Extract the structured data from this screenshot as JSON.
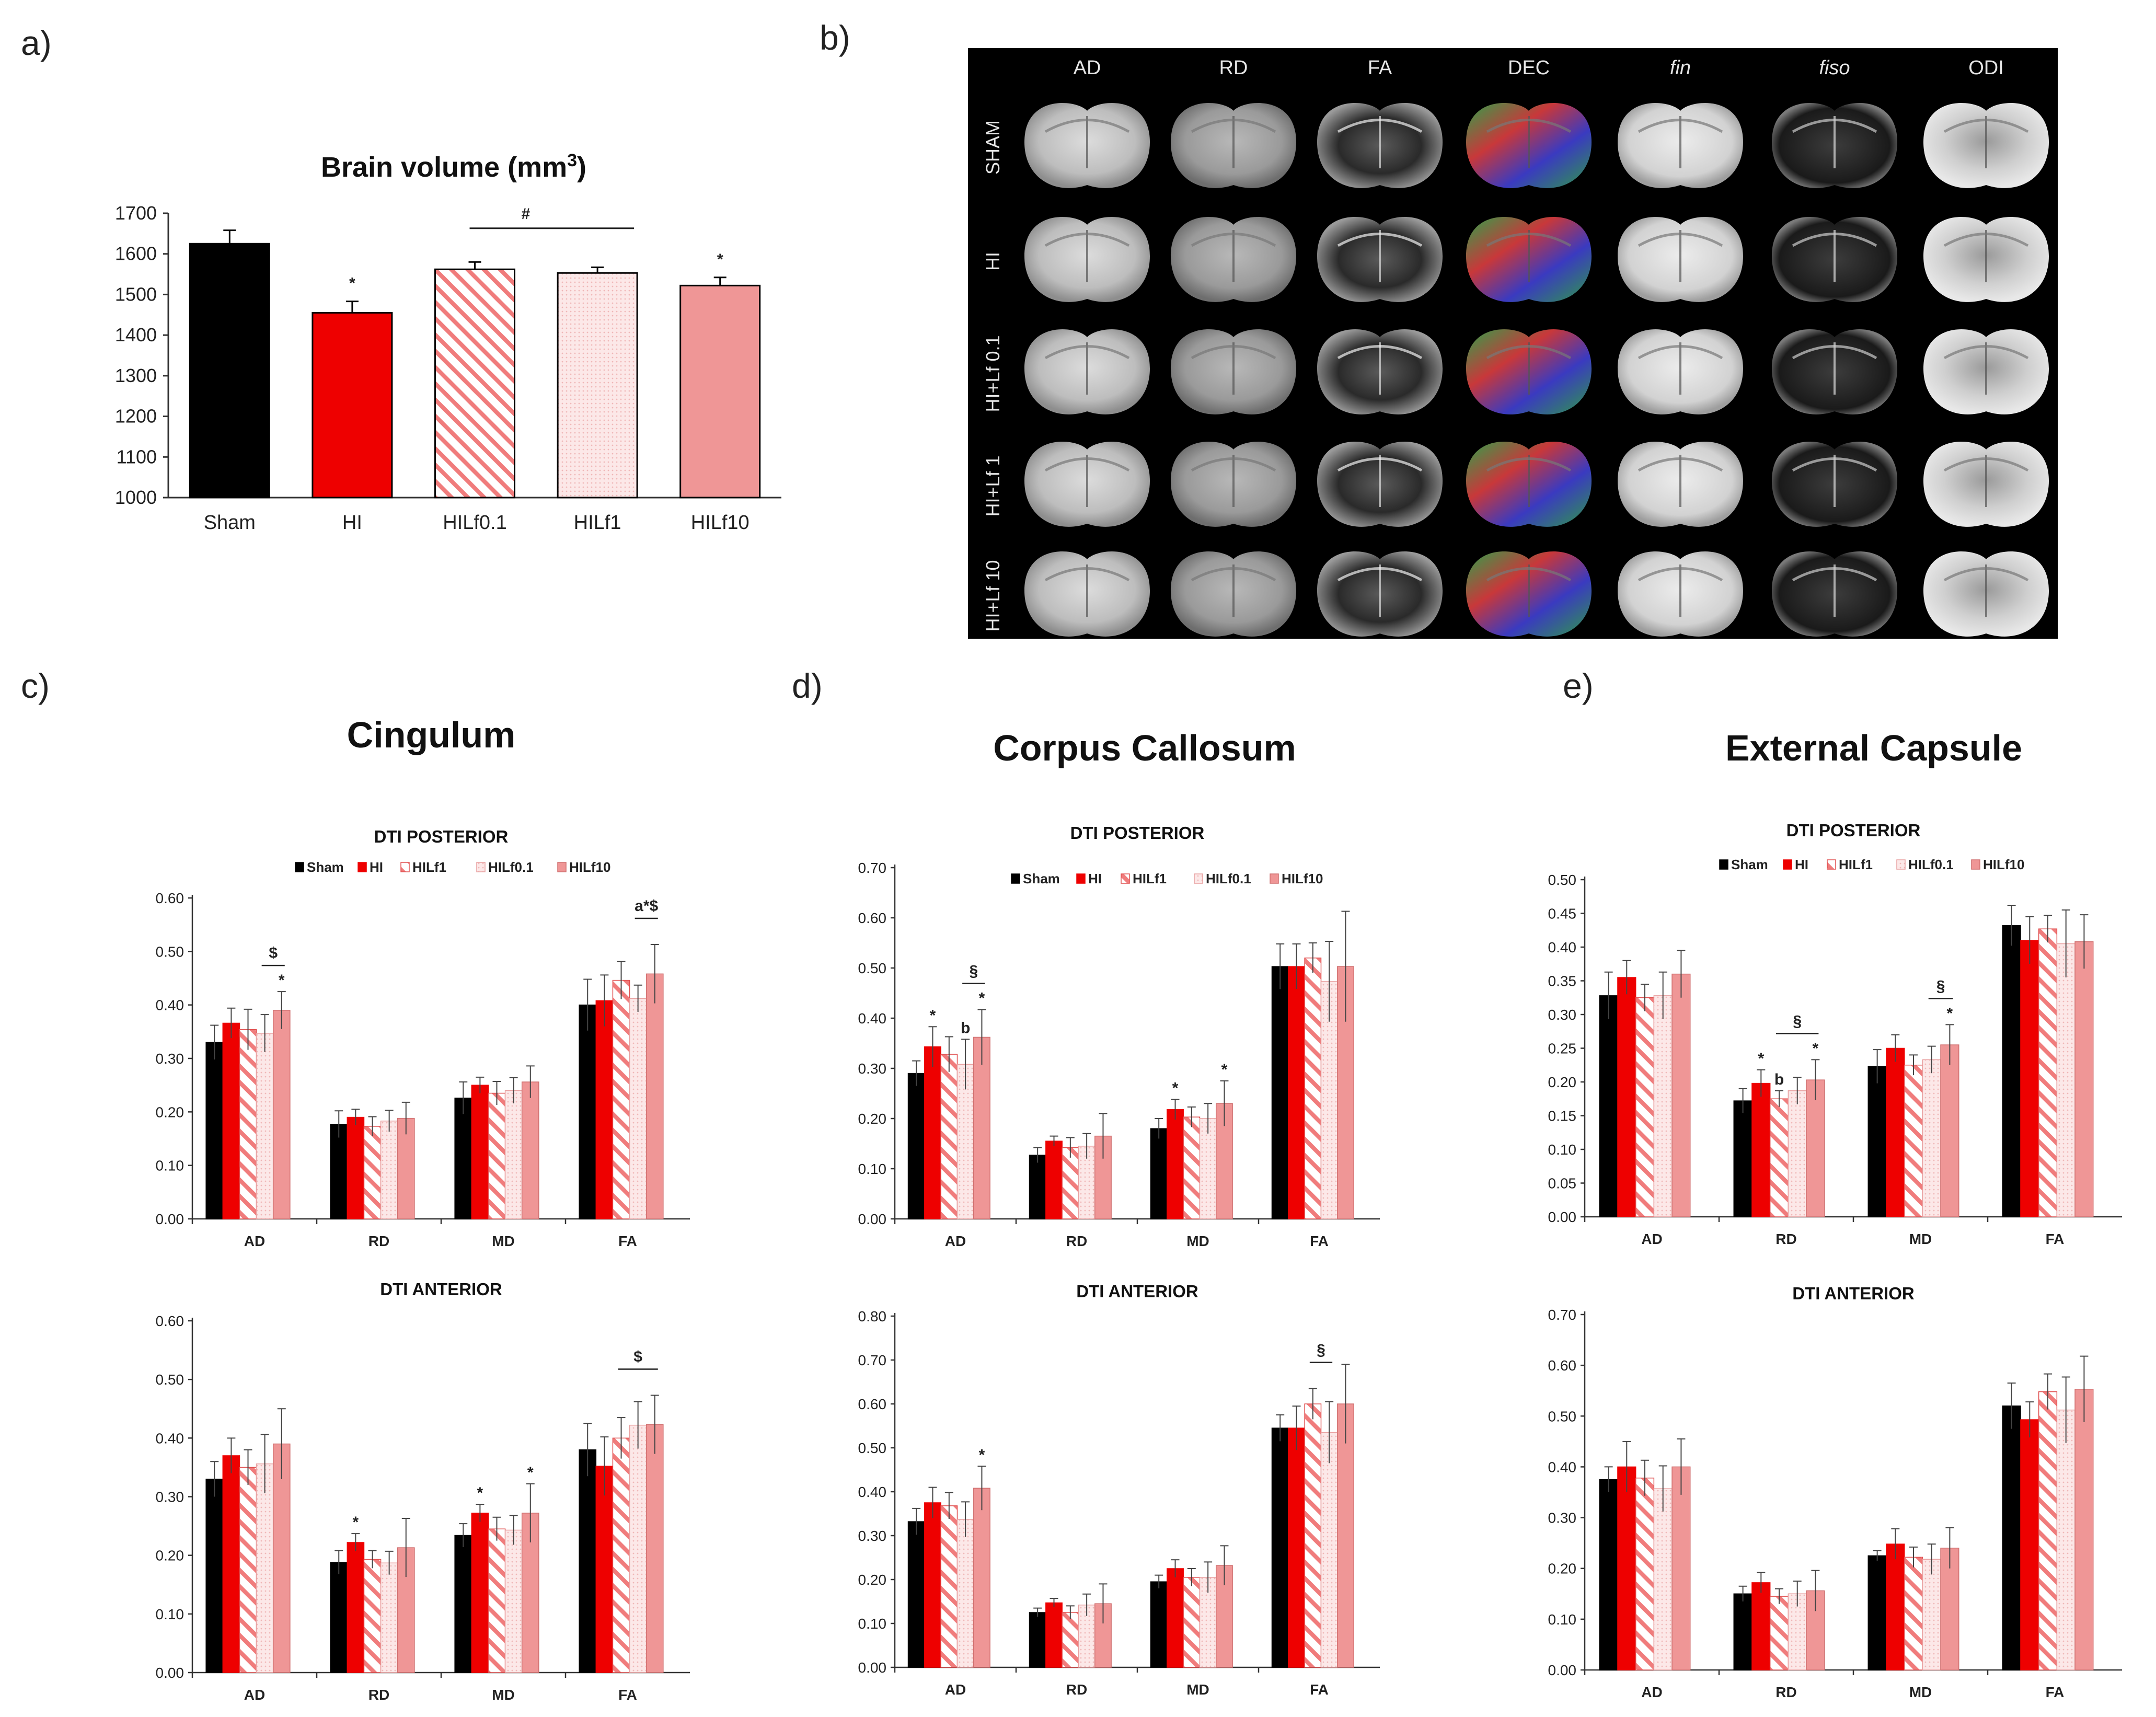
{
  "panels": {
    "a": "a)",
    "b": "b)",
    "c": "c)",
    "d": "d)",
    "e": "e)"
  },
  "colors": {
    "sham": "#000000",
    "hi": "#ee0000",
    "hilf01": "#f08a8a",
    "hilf1": "#f5c7c7",
    "hilf10": "#ef9696"
  },
  "mri": {
    "columns": [
      "AD",
      "RD",
      "FA",
      "DEC",
      "fin",
      "fiso",
      "ODI"
    ],
    "rows": [
      "SHAM",
      "HI",
      "HI+Lf 0.1",
      "HI+Lf 1",
      "HI+Lf 10"
    ]
  },
  "region_titles": {
    "cingulum": "Cingulum",
    "corpus_callosum": "Corpus Callosum",
    "external_capsule": "External Capsule"
  },
  "dti_legend": [
    "Sham",
    "HI",
    "HILf1",
    "HILf0.1",
    "HILf10"
  ],
  "chart_data": [
    {
      "id": "brain-volume",
      "type": "bar",
      "title": "Brain volume (mm",
      "title_sup": "3",
      "title_end": ")",
      "categories": [
        "Sham",
        "HI",
        "HILf0.1",
        "HILf1",
        "HILf10"
      ],
      "values": [
        1625,
        1455,
        1562,
        1553,
        1522
      ],
      "errors": [
        33,
        28,
        18,
        14,
        20
      ],
      "ylim": [
        1000,
        1700
      ],
      "yticks": [
        "1000",
        "1100",
        "1200",
        "1300",
        "1400",
        "1500",
        "1600",
        "1700"
      ],
      "annotations": [
        "",
        "*",
        "",
        "",
        "*"
      ],
      "bracket": {
        "from": 2,
        "to": 3,
        "label": "#"
      }
    },
    {
      "id": "cingulum-posterior",
      "type": "bar",
      "title": "DTI POSTERIOR",
      "categories": [
        "AD",
        "RD",
        "MD",
        "FA"
      ],
      "ylim": [
        0,
        0.6
      ],
      "yticks": [
        "0.00",
        "0.10",
        "0.20",
        "0.30",
        "0.40",
        "0.50",
        "0.60"
      ],
      "series": [
        {
          "name": "Sham",
          "values": [
            0.33,
            0.177,
            0.226,
            0.4
          ],
          "errors": [
            0.032,
            0.025,
            0.03,
            0.048
          ]
        },
        {
          "name": "HI",
          "values": [
            0.366,
            0.19,
            0.25,
            0.408
          ],
          "errors": [
            0.028,
            0.015,
            0.015,
            0.048
          ]
        },
        {
          "name": "HILf1",
          "values": [
            0.354,
            0.173,
            0.235,
            0.446
          ],
          "errors": [
            0.038,
            0.018,
            0.022,
            0.035
          ]
        },
        {
          "name": "HILf0.1",
          "values": [
            0.347,
            0.183,
            0.24,
            0.412
          ],
          "errors": [
            0.035,
            0.02,
            0.024,
            0.025
          ]
        },
        {
          "name": "HILf10",
          "values": [
            0.39,
            0.188,
            0.256,
            0.458
          ],
          "errors": [
            0.035,
            0.03,
            0.03,
            0.055
          ]
        }
      ],
      "annotations": [
        {
          "category": 0,
          "series": 4,
          "label": "*"
        },
        {
          "category": 0,
          "series": 4,
          "label": "$",
          "bracket_from": 3,
          "bracket_to": 4
        },
        {
          "category": 3,
          "series": 4,
          "label": "a*$",
          "bracket_from": 3,
          "bracket_to": 4
        }
      ]
    },
    {
      "id": "cingulum-anterior",
      "type": "bar",
      "title": "DTI ANTERIOR",
      "categories": [
        "AD",
        "RD",
        "MD",
        "FA"
      ],
      "ylim": [
        0,
        0.6
      ],
      "yticks": [
        "0.00",
        "0.10",
        "0.20",
        "0.30",
        "0.40",
        "0.50",
        "0.60"
      ],
      "series": [
        {
          "name": "Sham",
          "values": [
            0.33,
            0.188,
            0.234,
            0.38
          ],
          "errors": [
            0.03,
            0.02,
            0.02,
            0.045
          ]
        },
        {
          "name": "HI",
          "values": [
            0.37,
            0.222,
            0.272,
            0.352
          ],
          "errors": [
            0.03,
            0.015,
            0.015,
            0.05
          ]
        },
        {
          "name": "HILf1",
          "values": [
            0.35,
            0.193,
            0.245,
            0.4
          ],
          "errors": [
            0.03,
            0.015,
            0.02,
            0.035
          ]
        },
        {
          "name": "HILf0.1",
          "values": [
            0.356,
            0.187,
            0.243,
            0.422
          ],
          "errors": [
            0.05,
            0.02,
            0.025,
            0.04
          ]
        },
        {
          "name": "HILf10",
          "values": [
            0.39,
            0.213,
            0.272,
            0.423
          ],
          "errors": [
            0.06,
            0.05,
            0.05,
            0.05
          ]
        }
      ],
      "annotations": [
        {
          "category": 1,
          "series": 1,
          "label": "*"
        },
        {
          "category": 2,
          "series": 1,
          "label": "*"
        },
        {
          "category": 2,
          "series": 4,
          "label": "*"
        },
        {
          "category": 3,
          "series": 3,
          "label": "$",
          "bracket_from": 2,
          "bracket_to": 4
        }
      ]
    },
    {
      "id": "cc-posterior",
      "type": "bar",
      "title": "DTI POSTERIOR",
      "categories": [
        "AD",
        "RD",
        "MD",
        "FA"
      ],
      "ylim": [
        0,
        0.7
      ],
      "yticks": [
        "0.00",
        "0.10",
        "0.20",
        "0.30",
        "0.40",
        "0.50",
        "0.60",
        "0.70"
      ],
      "series": [
        {
          "name": "Sham",
          "values": [
            0.29,
            0.127,
            0.18,
            0.503
          ],
          "errors": [
            0.025,
            0.015,
            0.02,
            0.045
          ]
        },
        {
          "name": "HI",
          "values": [
            0.343,
            0.155,
            0.218,
            0.503
          ],
          "errors": [
            0.04,
            0.01,
            0.02,
            0.045
          ]
        },
        {
          "name": "HILf1",
          "values": [
            0.328,
            0.142,
            0.203,
            0.52
          ],
          "errors": [
            0.035,
            0.02,
            0.02,
            0.03
          ]
        },
        {
          "name": "HILf0.1",
          "values": [
            0.308,
            0.145,
            0.2,
            0.473
          ],
          "errors": [
            0.05,
            0.025,
            0.03,
            0.08
          ]
        },
        {
          "name": "HILf10",
          "values": [
            0.362,
            0.165,
            0.23,
            0.503
          ],
          "errors": [
            0.055,
            0.045,
            0.045,
            0.11
          ]
        }
      ],
      "annotations": [
        {
          "category": 0,
          "series": 1,
          "label": "*"
        },
        {
          "category": 0,
          "series": 3,
          "label": "b"
        },
        {
          "category": 0,
          "series": 4,
          "label": "*"
        },
        {
          "category": 0,
          "series": 3,
          "label": "§",
          "bracket_from": 3,
          "bracket_to": 4
        },
        {
          "category": 2,
          "series": 1,
          "label": "*"
        },
        {
          "category": 2,
          "series": 4,
          "label": "*"
        }
      ]
    },
    {
      "id": "cc-anterior",
      "type": "bar",
      "title": "DTI ANTERIOR",
      "categories": [
        "AD",
        "RD",
        "MD",
        "FA"
      ],
      "ylim": [
        0,
        0.8
      ],
      "yticks": [
        "0.00",
        "0.10",
        "0.20",
        "0.30",
        "0.40",
        "0.50",
        "0.60",
        "0.70",
        "0.80"
      ],
      "series": [
        {
          "name": "Sham",
          "values": [
            0.332,
            0.125,
            0.195,
            0.545
          ],
          "errors": [
            0.03,
            0.01,
            0.015,
            0.03
          ]
        },
        {
          "name": "HI",
          "values": [
            0.375,
            0.147,
            0.225,
            0.545
          ],
          "errors": [
            0.035,
            0.01,
            0.02,
            0.05
          ]
        },
        {
          "name": "HILf1",
          "values": [
            0.368,
            0.125,
            0.205,
            0.6
          ],
          "errors": [
            0.03,
            0.015,
            0.02,
            0.035
          ]
        },
        {
          "name": "HILf0.1",
          "values": [
            0.337,
            0.142,
            0.205,
            0.535
          ],
          "errors": [
            0.04,
            0.025,
            0.035,
            0.07
          ]
        },
        {
          "name": "HILf10",
          "values": [
            0.408,
            0.145,
            0.232,
            0.6
          ],
          "errors": [
            0.05,
            0.045,
            0.045,
            0.09
          ]
        }
      ],
      "annotations": [
        {
          "category": 0,
          "series": 4,
          "label": "*"
        },
        {
          "category": 3,
          "series": 2,
          "label": "§",
          "bracket_from": 2,
          "bracket_to": 3
        }
      ]
    },
    {
      "id": "ec-posterior",
      "type": "bar",
      "title": "DTI POSTERIOR",
      "categories": [
        "AD",
        "RD",
        "MD",
        "FA"
      ],
      "ylim": [
        0,
        0.5
      ],
      "yticks": [
        "0.00",
        "0.05",
        "0.10",
        "0.15",
        "0.20",
        "0.25",
        "0.30",
        "0.35",
        "0.40",
        "0.45",
        "0.50"
      ],
      "series": [
        {
          "name": "Sham",
          "values": [
            0.328,
            0.172,
            0.223,
            0.432
          ],
          "errors": [
            0.035,
            0.018,
            0.025,
            0.03
          ]
        },
        {
          "name": "HI",
          "values": [
            0.355,
            0.198,
            0.25,
            0.41
          ],
          "errors": [
            0.025,
            0.02,
            0.02,
            0.035
          ]
        },
        {
          "name": "HILf1",
          "values": [
            0.325,
            0.175,
            0.225,
            0.427
          ],
          "errors": [
            0.02,
            0.012,
            0.015,
            0.02
          ]
        },
        {
          "name": "HILf0.1",
          "values": [
            0.328,
            0.187,
            0.233,
            0.405
          ],
          "errors": [
            0.035,
            0.02,
            0.02,
            0.05
          ]
        },
        {
          "name": "HILf10",
          "values": [
            0.36,
            0.203,
            0.255,
            0.408
          ],
          "errors": [
            0.035,
            0.03,
            0.03,
            0.04
          ]
        }
      ],
      "annotations": [
        {
          "category": 1,
          "series": 1,
          "label": "*"
        },
        {
          "category": 1,
          "series": 2,
          "label": "b"
        },
        {
          "category": 1,
          "series": 4,
          "label": "*"
        },
        {
          "category": 1,
          "series": 3,
          "label": "§",
          "bracket_from": 2,
          "bracket_to": 4
        },
        {
          "category": 2,
          "series": 4,
          "label": "*"
        },
        {
          "category": 2,
          "series": 3,
          "label": "§",
          "bracket_from": 3,
          "bracket_to": 4
        }
      ]
    },
    {
      "id": "ec-anterior",
      "type": "bar",
      "title": "DTI ANTERIOR",
      "categories": [
        "AD",
        "RD",
        "MD",
        "FA"
      ],
      "ylim": [
        0,
        0.7
      ],
      "yticks": [
        "0.00",
        "0.10",
        "0.20",
        "0.30",
        "0.40",
        "0.50",
        "0.60",
        "0.70"
      ],
      "series": [
        {
          "name": "Sham",
          "values": [
            0.375,
            0.15,
            0.225,
            0.52
          ],
          "errors": [
            0.025,
            0.015,
            0.01,
            0.045
          ]
        },
        {
          "name": "HI",
          "values": [
            0.4,
            0.172,
            0.248,
            0.493
          ],
          "errors": [
            0.05,
            0.02,
            0.03,
            0.035
          ]
        },
        {
          "name": "HILf1",
          "values": [
            0.378,
            0.145,
            0.222,
            0.548
          ],
          "errors": [
            0.035,
            0.015,
            0.02,
            0.035
          ]
        },
        {
          "name": "HILf0.1",
          "values": [
            0.357,
            0.15,
            0.218,
            0.512
          ],
          "errors": [
            0.045,
            0.025,
            0.03,
            0.065
          ]
        },
        {
          "name": "HILf10",
          "values": [
            0.4,
            0.156,
            0.24,
            0.553
          ],
          "errors": [
            0.055,
            0.04,
            0.04,
            0.065
          ]
        }
      ],
      "annotations": []
    }
  ]
}
